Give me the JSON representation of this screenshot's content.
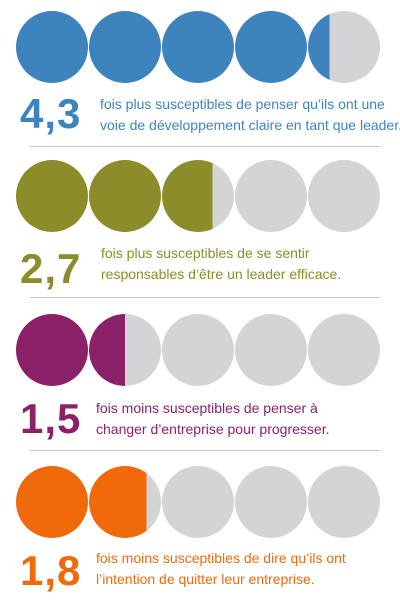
{
  "stats": [
    {
      "value": "4,3",
      "fill": 0.3,
      "color": "#3d84be",
      "line1": "fois plus susceptibles de penser qu’ils ont une",
      "line2": "voie de développement claire en tant que leader."
    },
    {
      "value": "2,7",
      "fill": 0.7,
      "color": "#8c8c2b",
      "line1": "fois plus susceptibles de se sentir",
      "line2": "responsables d’être un leader efficace."
    },
    {
      "value": "1,5",
      "fill": 0.5,
      "color": "#8b2169",
      "line1": "fois moins susceptibles de penser à",
      "line2": "changer d’entreprise pour progresser."
    },
    {
      "value": "1,8",
      "fill": 0.8,
      "color": "#f06a0c",
      "line1": "fois moins susceptibles de dire qu’ils ont",
      "line2": "l’intention de quitter leur entreprise."
    }
  ],
  "empty_color": "#d3d4d6",
  "circles_per_row": 5
}
